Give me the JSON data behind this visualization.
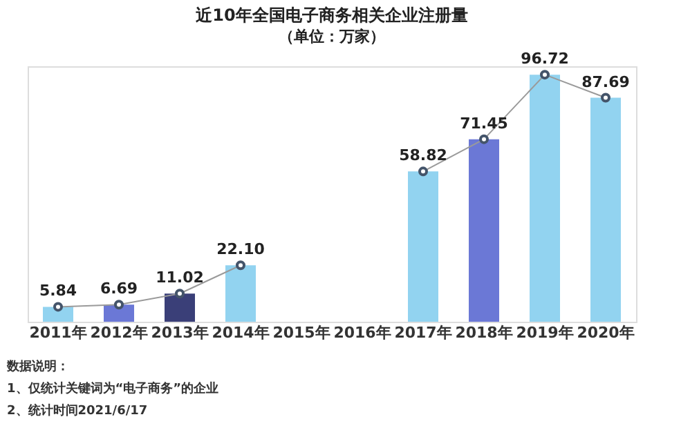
{
  "chart_data": {
    "type": "bar",
    "title": "近10年全国电子商务相关企业注册量",
    "subtitle": "（单位：万家）",
    "categories": [
      "2011年",
      "2012年",
      "2013年",
      "2014年",
      "2015年",
      "2016年",
      "2017年",
      "2018年",
      "2019年",
      "2020年"
    ],
    "series": [
      {
        "colors": [
          "#92d3f0",
          "#6b78d6",
          "#3a3f78",
          "#92d3f0",
          "#6b78d6",
          "#3a3f78",
          "#92d3f0",
          "#6b78d6",
          "#92d3f0",
          "#92d3f0"
        ],
        "values": [
          5.84,
          6.69,
          11.02,
          22.1,
          null,
          null,
          58.82,
          71.45,
          96.72,
          87.69
        ]
      },
      {
        "type": "line",
        "color": "#9a9a9a",
        "marker": "circle",
        "values": [
          5.84,
          6.69,
          11.02,
          22.1,
          null,
          null,
          58.82,
          71.45,
          96.72,
          87.69
        ],
        "value_labels": [
          "5.84",
          "6.69",
          "11.02",
          "22.10",
          null,
          null,
          "58.82",
          "71.45",
          "96.72",
          "87.69"
        ]
      }
    ],
    "grid": false,
    "legend": false,
    "annotations": [
      "数据说明：",
      "1、仅统计关键词为“电子商务”的企业",
      "2、统计时间2021/6/17"
    ]
  }
}
